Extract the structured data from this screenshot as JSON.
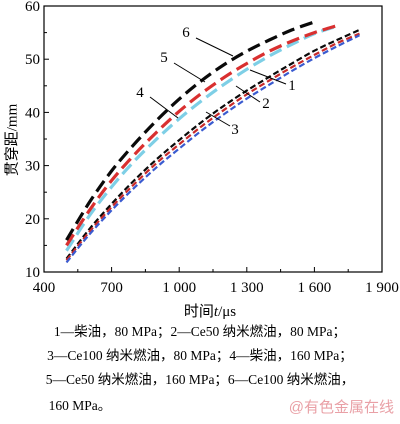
{
  "chart_data": {
    "type": "line",
    "xlabel_prefix": "时间",
    "xlabel_var": "t",
    "xlabel_unit": "/μs",
    "ylabel": "贯穿距/mm",
    "xlim": [
      400,
      1900
    ],
    "ylim": [
      10,
      60
    ],
    "xticks": [
      400,
      700,
      1000,
      1300,
      1600,
      1900
    ],
    "xtick_labels": [
      "400",
      "700",
      "1 000",
      "1 300",
      "1 600",
      "1 900"
    ],
    "yticks": [
      10,
      20,
      30,
      40,
      50,
      60
    ],
    "ytick_labels": [
      "10",
      "20",
      "30",
      "40",
      "50",
      "60"
    ],
    "grid": false,
    "series": [
      {
        "name": "1",
        "color": "#0a0a0a",
        "style": "short-dash",
        "x": [
          500,
          600,
          700,
          800,
          900,
          1000,
          1100,
          1200,
          1300,
          1400,
          1500,
          1600,
          1700,
          1800
        ],
        "y": [
          12.5,
          18.0,
          22.8,
          27.2,
          31.2,
          34.8,
          38.2,
          41.3,
          44.1,
          46.7,
          49.2,
          51.6,
          53.6,
          55.5
        ]
      },
      {
        "name": "2",
        "color": "#c82a2a",
        "style": "short-dash",
        "x": [
          500,
          600,
          700,
          800,
          900,
          1000,
          1100,
          1200,
          1300,
          1400,
          1500,
          1600,
          1700,
          1800
        ],
        "y": [
          12.2,
          17.5,
          22.2,
          26.5,
          30.5,
          34.0,
          37.4,
          40.5,
          43.4,
          46.0,
          48.5,
          50.8,
          53.0,
          54.8
        ]
      },
      {
        "name": "3",
        "color": "#3a5bd0",
        "style": "short-dash",
        "x": [
          500,
          600,
          700,
          800,
          900,
          1000,
          1100,
          1200,
          1300,
          1400,
          1500,
          1600,
          1700,
          1800
        ],
        "y": [
          11.8,
          17.0,
          21.6,
          25.8,
          29.7,
          33.2,
          36.6,
          39.7,
          42.6,
          45.2,
          47.8,
          50.2,
          52.4,
          54.5
        ]
      },
      {
        "name": "4",
        "color": "#7ecfe6",
        "style": "long-dash",
        "x": [
          500,
          600,
          700,
          800,
          900,
          1000,
          1100,
          1200,
          1300,
          1400,
          1500,
          1600,
          1700
        ],
        "y": [
          14.0,
          20.5,
          26.0,
          30.8,
          35.0,
          38.8,
          42.2,
          45.3,
          48.1,
          50.6,
          52.8,
          54.8,
          56.2
        ]
      },
      {
        "name": "5",
        "color": "#d93030",
        "style": "long-dash",
        "x": [
          500,
          600,
          700,
          800,
          900,
          1000,
          1100,
          1200,
          1300,
          1400,
          1500,
          1600,
          1700
        ],
        "y": [
          15.0,
          21.5,
          27.2,
          32.0,
          36.3,
          40.2,
          43.6,
          46.6,
          49.2,
          51.5,
          53.4,
          55.0,
          56.3
        ]
      },
      {
        "name": "6",
        "color": "#0a0a0a",
        "style": "long-dash",
        "x": [
          500,
          600,
          700,
          800,
          900,
          1000,
          1100,
          1200,
          1300,
          1400,
          1500,
          1600
        ],
        "y": [
          16.0,
          23.0,
          29.0,
          34.0,
          38.5,
          42.5,
          46.0,
          49.0,
          51.5,
          53.6,
          55.5,
          57.0
        ]
      }
    ],
    "callouts": [
      {
        "label": "1"
      },
      {
        "label": "2"
      },
      {
        "label": "3"
      },
      {
        "label": "4"
      },
      {
        "label": "5"
      },
      {
        "label": "6"
      }
    ]
  },
  "caption": {
    "line1": "1—柴油，80 MPa；2—Ce50 纳米燃油，80 MPa；",
    "line2": "3—Ce100 纳米燃油，80 MPa；4—柴油，160 MPa；",
    "line3": "5—Ce50 纳米燃油，160 MPa；6—Ce100 纳米燃油，",
    "line4": "160 MPa。"
  },
  "watermark": "@有色金属在线"
}
